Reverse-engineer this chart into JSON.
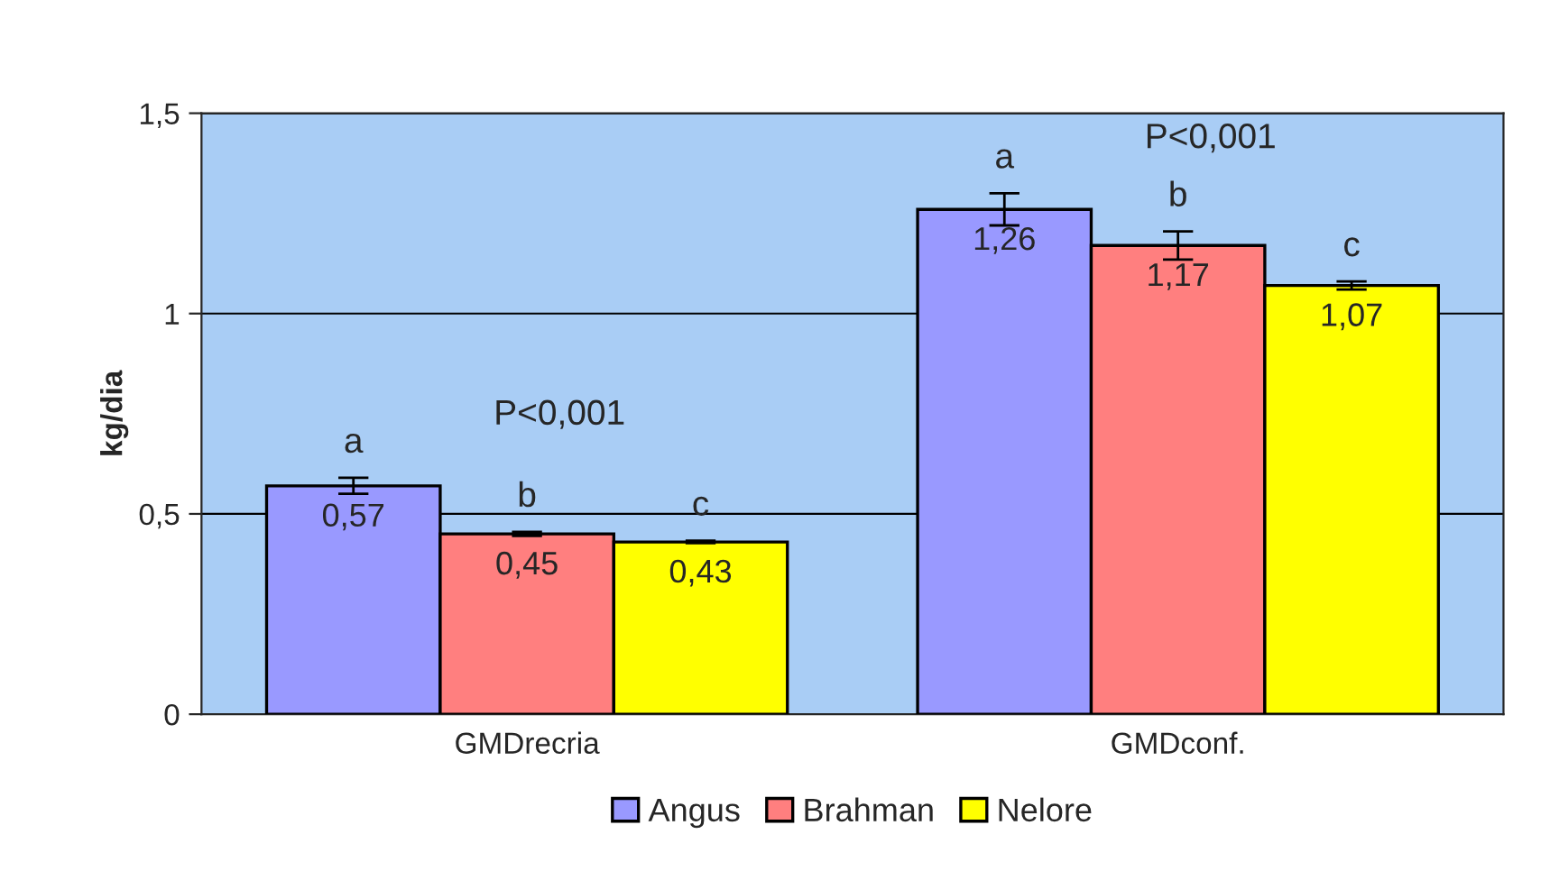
{
  "chart_data": {
    "type": "bar",
    "ylabel": "kg/dia",
    "categories": [
      "GMDrecria",
      "GMDconf."
    ],
    "series": [
      {
        "name": "Angus",
        "color": "#9999ff",
        "values": [
          0.57,
          1.26
        ],
        "errors": [
          0.02,
          0.04
        ],
        "value_labels": [
          "0,57",
          "1,26"
        ]
      },
      {
        "name": "Brahman",
        "color": "#ff7f7f",
        "values": [
          0.45,
          1.17
        ],
        "errors": [
          0.005,
          0.035
        ],
        "value_labels": [
          "0,45",
          "1,17"
        ]
      },
      {
        "name": "Nelore",
        "color": "#ffff00",
        "values": [
          0.43,
          1.07
        ],
        "errors": [
          0.003,
          0.01
        ],
        "value_labels": [
          "0,43",
          "1,07"
        ]
      }
    ],
    "annotations": [
      "a",
      "b",
      "c",
      "P<0,001",
      "a",
      "b",
      "c",
      "P<0,001"
    ],
    "ylim": [
      0,
      1.5
    ],
    "yticks": [
      0,
      {
        "value": 0.5,
        "label": "0,5"
      },
      1,
      {
        "value": 1.5,
        "label": "1,5"
      }
    ],
    "grid": "y",
    "legend": "bottom"
  }
}
